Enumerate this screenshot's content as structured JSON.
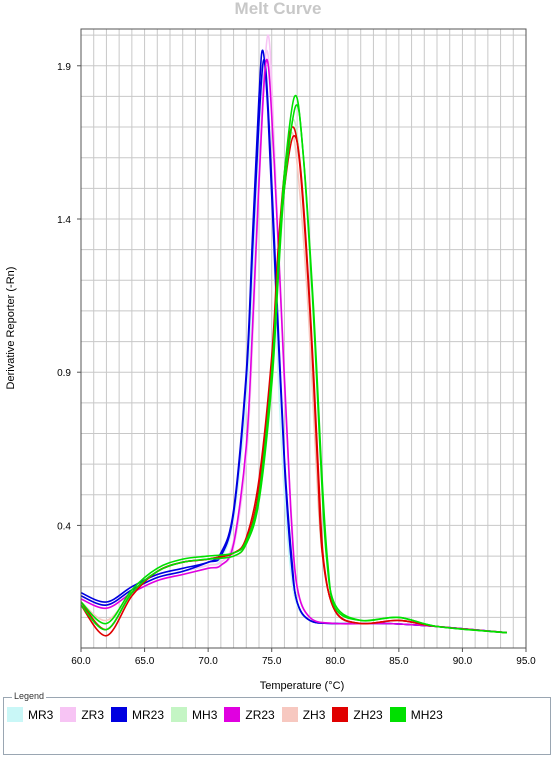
{
  "chart_data": {
    "type": "line",
    "title": "Melt Curve",
    "xlabel": "Temperature (°C)",
    "ylabel": "Derivative Reporter (-Rn)",
    "xlim": [
      60.0,
      95.0
    ],
    "ylim": [
      0.0,
      2.02
    ],
    "x_ticks": [
      "60.0",
      "65.0",
      "70.0",
      "75.0",
      "80.0",
      "85.0",
      "90.0",
      "95.0"
    ],
    "y_ticks": [
      {
        "value": 0.4,
        "label": "0.4"
      },
      {
        "value": 0.9,
        "label": "0.9"
      },
      {
        "value": 1.4,
        "label": "1.4"
      },
      {
        "value": 1.9,
        "label": "1.9"
      }
    ],
    "grid": true,
    "legend_title": "Legend",
    "legend_position": "bottom",
    "series": [
      {
        "name": "MR3",
        "color": "#c9f7f7",
        "replicates": [
          [
            [
              60,
              0.17
            ],
            [
              62,
              0.14
            ],
            [
              64,
              0.19
            ],
            [
              66,
              0.23
            ],
            [
              68,
              0.25
            ],
            [
              70,
              0.27
            ],
            [
              71,
              0.29
            ],
            [
              72,
              0.42
            ],
            [
              73,
              0.8
            ],
            [
              73.5,
              1.2
            ],
            [
              74,
              1.68
            ],
            [
              74.5,
              1.9
            ],
            [
              75,
              1.5
            ],
            [
              75.5,
              0.9
            ],
            [
              76,
              0.5
            ],
            [
              76.5,
              0.25
            ],
            [
              77,
              0.14
            ],
            [
              78,
              0.09
            ],
            [
              80,
              0.08
            ],
            [
              84,
              0.08
            ],
            [
              88,
              0.07
            ],
            [
              93.5,
              0.05
            ]
          ]
        ]
      },
      {
        "name": "ZR3",
        "color": "#f7c4f4",
        "replicates": [
          [
            [
              60,
              0.17
            ],
            [
              62,
              0.14
            ],
            [
              64,
              0.19
            ],
            [
              66,
              0.23
            ],
            [
              68,
              0.25
            ],
            [
              70,
              0.27
            ],
            [
              71,
              0.28
            ],
            [
              72,
              0.35
            ],
            [
              73,
              0.65
            ],
            [
              73.5,
              1.05
            ],
            [
              74,
              1.55
            ],
            [
              74.6,
              1.95
            ],
            [
              75.2,
              1.6
            ],
            [
              76,
              0.9
            ],
            [
              76.5,
              0.45
            ],
            [
              77,
              0.2
            ],
            [
              78,
              0.1
            ],
            [
              80,
              0.08
            ],
            [
              84,
              0.08
            ],
            [
              88,
              0.07
            ],
            [
              93.5,
              0.05
            ]
          ],
          [
            [
              60,
              0.16
            ],
            [
              62,
              0.13
            ],
            [
              64,
              0.18
            ],
            [
              66,
              0.22
            ],
            [
              68,
              0.24
            ],
            [
              70,
              0.26
            ],
            [
              71,
              0.27
            ],
            [
              72,
              0.33
            ],
            [
              73,
              0.62
            ],
            [
              73.5,
              1.0
            ],
            [
              74,
              1.5
            ],
            [
              74.7,
              2.0
            ],
            [
              75.3,
              1.55
            ],
            [
              76,
              0.85
            ],
            [
              76.6,
              0.4
            ],
            [
              77,
              0.2
            ],
            [
              78,
              0.1
            ],
            [
              80,
              0.08
            ],
            [
              84,
              0.08
            ],
            [
              88,
              0.07
            ],
            [
              93.5,
              0.05
            ]
          ]
        ]
      },
      {
        "name": "MR23",
        "color": "#0000e0",
        "replicates": [
          [
            [
              60,
              0.18
            ],
            [
              62,
              0.15
            ],
            [
              64,
              0.2
            ],
            [
              66,
              0.24
            ],
            [
              68,
              0.26
            ],
            [
              70,
              0.28
            ],
            [
              71,
              0.31
            ],
            [
              72,
              0.45
            ],
            [
              73,
              0.9
            ],
            [
              73.5,
              1.35
            ],
            [
              74,
              1.8
            ],
            [
              74.3,
              1.95
            ],
            [
              74.7,
              1.75
            ],
            [
              75.3,
              1.2
            ],
            [
              76,
              0.6
            ],
            [
              76.5,
              0.3
            ],
            [
              77,
              0.15
            ],
            [
              78,
              0.09
            ],
            [
              80,
              0.08
            ],
            [
              84,
              0.08
            ],
            [
              88,
              0.07
            ],
            [
              93.5,
              0.05
            ]
          ],
          [
            [
              60,
              0.17
            ],
            [
              62,
              0.14
            ],
            [
              64,
              0.19
            ],
            [
              66,
              0.23
            ],
            [
              68,
              0.25
            ],
            [
              70,
              0.28
            ],
            [
              71,
              0.3
            ],
            [
              72,
              0.44
            ],
            [
              73,
              0.88
            ],
            [
              73.5,
              1.3
            ],
            [
              74,
              1.72
            ],
            [
              74.4,
              1.92
            ],
            [
              74.8,
              1.7
            ],
            [
              75.4,
              1.15
            ],
            [
              76,
              0.62
            ],
            [
              76.6,
              0.28
            ],
            [
              77,
              0.15
            ],
            [
              78,
              0.09
            ],
            [
              80,
              0.08
            ],
            [
              84,
              0.08
            ],
            [
              88,
              0.07
            ],
            [
              93.5,
              0.05
            ]
          ]
        ]
      },
      {
        "name": "MH3",
        "color": "#c4f5c4",
        "replicates": [
          [
            [
              60,
              0.14
            ],
            [
              62,
              0.08
            ],
            [
              64,
              0.18
            ],
            [
              66,
              0.25
            ],
            [
              68,
              0.28
            ],
            [
              70,
              0.29
            ],
            [
              72,
              0.3
            ],
            [
              73,
              0.34
            ],
            [
              74,
              0.48
            ],
            [
              75,
              0.85
            ],
            [
              75.5,
              1.2
            ],
            [
              76,
              1.5
            ],
            [
              76.6,
              1.72
            ],
            [
              77.2,
              1.6
            ],
            [
              78,
              1.1
            ],
            [
              78.5,
              0.6
            ],
            [
              79,
              0.3
            ],
            [
              80,
              0.12
            ],
            [
              82,
              0.08
            ],
            [
              85,
              0.09
            ],
            [
              88,
              0.07
            ],
            [
              93.5,
              0.05
            ]
          ]
        ]
      },
      {
        "name": "ZR23",
        "color": "#e000e0",
        "replicates": [
          [
            [
              60,
              0.16
            ],
            [
              62,
              0.13
            ],
            [
              64,
              0.18
            ],
            [
              66,
              0.22
            ],
            [
              68,
              0.24
            ],
            [
              70,
              0.26
            ],
            [
              71,
              0.27
            ],
            [
              72,
              0.34
            ],
            [
              73,
              0.66
            ],
            [
              73.5,
              1.05
            ],
            [
              74,
              1.52
            ],
            [
              74.6,
              1.92
            ],
            [
              75.2,
              1.58
            ],
            [
              76,
              0.88
            ],
            [
              76.5,
              0.45
            ],
            [
              77,
              0.2
            ],
            [
              78,
              0.1
            ],
            [
              80,
              0.08
            ],
            [
              84,
              0.08
            ],
            [
              88,
              0.07
            ],
            [
              93.5,
              0.05
            ]
          ]
        ]
      },
      {
        "name": "ZH3",
        "color": "#f7c8c0",
        "replicates": [
          [
            [
              60,
              0.15
            ],
            [
              62,
              0.09
            ],
            [
              64,
              0.18
            ],
            [
              66,
              0.25
            ],
            [
              68,
              0.28
            ],
            [
              70,
              0.29
            ],
            [
              72,
              0.3
            ],
            [
              73,
              0.34
            ],
            [
              74,
              0.5
            ],
            [
              75,
              0.9
            ],
            [
              75.5,
              1.25
            ],
            [
              76,
              1.52
            ],
            [
              76.5,
              1.68
            ],
            [
              77,
              1.58
            ],
            [
              77.8,
              1.15
            ],
            [
              78.5,
              0.6
            ],
            [
              79,
              0.3
            ],
            [
              80,
              0.12
            ],
            [
              82,
              0.08
            ],
            [
              85,
              0.09
            ],
            [
              88,
              0.07
            ],
            [
              93.5,
              0.05
            ]
          ]
        ]
      },
      {
        "name": "ZH23",
        "color": "#e00000",
        "replicates": [
          [
            [
              60,
              0.14
            ],
            [
              62,
              0.04
            ],
            [
              64,
              0.17
            ],
            [
              66,
              0.25
            ],
            [
              68,
              0.28
            ],
            [
              70,
              0.29
            ],
            [
              72,
              0.31
            ],
            [
              73,
              0.36
            ],
            [
              74,
              0.55
            ],
            [
              75,
              0.95
            ],
            [
              75.5,
              1.3
            ],
            [
              76,
              1.55
            ],
            [
              76.6,
              1.7
            ],
            [
              77.2,
              1.58
            ],
            [
              78,
              1.1
            ],
            [
              78.6,
              0.6
            ],
            [
              79,
              0.3
            ],
            [
              80,
              0.12
            ],
            [
              82,
              0.08
            ],
            [
              85,
              0.09
            ],
            [
              88,
              0.07
            ],
            [
              93.5,
              0.05
            ]
          ],
          [
            [
              60,
              0.15
            ],
            [
              62,
              0.06
            ],
            [
              64,
              0.18
            ],
            [
              66,
              0.25
            ],
            [
              68,
              0.28
            ],
            [
              70,
              0.29
            ],
            [
              72,
              0.31
            ],
            [
              73,
              0.35
            ],
            [
              74,
              0.52
            ],
            [
              75,
              0.92
            ],
            [
              75.5,
              1.25
            ],
            [
              76,
              1.5
            ],
            [
              76.7,
              1.67
            ],
            [
              77.3,
              1.55
            ],
            [
              78.1,
              1.05
            ],
            [
              78.7,
              0.55
            ],
            [
              79.1,
              0.28
            ],
            [
              80,
              0.12
            ],
            [
              82,
              0.08
            ],
            [
              85,
              0.09
            ],
            [
              88,
              0.07
            ],
            [
              93.5,
              0.05
            ]
          ]
        ]
      },
      {
        "name": "MH23",
        "color": "#00e000",
        "replicates": [
          [
            [
              60,
              0.15
            ],
            [
              62,
              0.08
            ],
            [
              64,
              0.19
            ],
            [
              66,
              0.26
            ],
            [
              68,
              0.29
            ],
            [
              70,
              0.3
            ],
            [
              72,
              0.31
            ],
            [
              73,
              0.35
            ],
            [
              74,
              0.5
            ],
            [
              75,
              0.9
            ],
            [
              75.5,
              1.25
            ],
            [
              76,
              1.55
            ],
            [
              76.8,
              1.8
            ],
            [
              77.4,
              1.65
            ],
            [
              78.2,
              1.15
            ],
            [
              78.8,
              0.65
            ],
            [
              79.3,
              0.3
            ],
            [
              80,
              0.14
            ],
            [
              82,
              0.09
            ],
            [
              85,
              0.1
            ],
            [
              88,
              0.07
            ],
            [
              93.5,
              0.05
            ]
          ],
          [
            [
              60,
              0.14
            ],
            [
              62,
              0.06
            ],
            [
              64,
              0.18
            ],
            [
              66,
              0.25
            ],
            [
              68,
              0.28
            ],
            [
              70,
              0.29
            ],
            [
              72,
              0.3
            ],
            [
              73,
              0.34
            ],
            [
              74,
              0.48
            ],
            [
              75,
              0.86
            ],
            [
              75.5,
              1.2
            ],
            [
              76,
              1.5
            ],
            [
              76.9,
              1.77
            ],
            [
              77.5,
              1.6
            ],
            [
              78.3,
              1.1
            ],
            [
              78.9,
              0.6
            ],
            [
              79.4,
              0.28
            ],
            [
              80,
              0.13
            ],
            [
              82,
              0.09
            ],
            [
              85,
              0.1
            ],
            [
              88,
              0.07
            ],
            [
              93.5,
              0.05
            ]
          ]
        ]
      }
    ]
  }
}
